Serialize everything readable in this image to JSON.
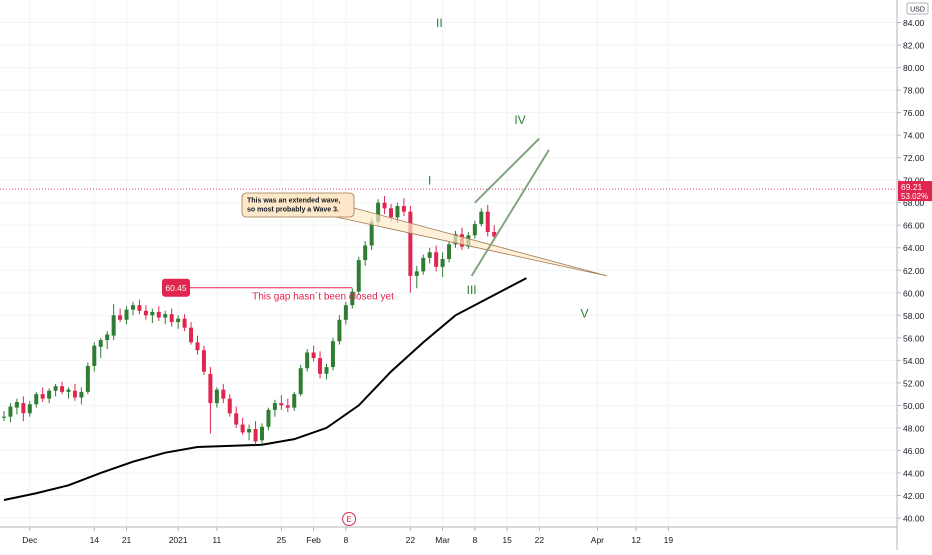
{
  "chart_data": {
    "type": "candlestick",
    "currency": "USD",
    "y_ticks": [
      "40.00",
      "42.00",
      "44.00",
      "46.00",
      "48.00",
      "50.00",
      "52.00",
      "54.00",
      "56.00",
      "58.00",
      "60.00",
      "62.00",
      "64.00",
      "66.00",
      "68.00",
      "70.00",
      "72.00",
      "74.00",
      "76.00",
      "78.00",
      "80.00",
      "82.00",
      "84.00"
    ],
    "ylim": [
      39.2,
      86.0
    ],
    "x_labels": [
      {
        "label": "Dec",
        "t": 4
      },
      {
        "label": "14",
        "t": 14
      },
      {
        "label": "21",
        "t": 19
      },
      {
        "label": "2021",
        "t": 27
      },
      {
        "label": "11",
        "t": 33
      },
      {
        "label": "25",
        "t": 43
      },
      {
        "label": "Feb",
        "t": 48
      },
      {
        "label": "8",
        "t": 53
      },
      {
        "label": "22",
        "t": 63
      },
      {
        "label": "Mar",
        "t": 68
      },
      {
        "label": "8",
        "t": 73
      },
      {
        "label": "15",
        "t": 78
      },
      {
        "label": "22",
        "t": 83
      },
      {
        "label": "Apr",
        "t": 92
      },
      {
        "label": "12",
        "t": 98
      },
      {
        "label": "19",
        "t": 103
      }
    ],
    "last_price": 69.21,
    "last_change": "53.02%",
    "gap_price": 60.45,
    "gap_label": "60.45",
    "gap_text": "This gap hasn´t been closed yet",
    "callout_text": [
      "This was an extended wave,",
      "so most probably a Wave 3."
    ],
    "earnings_marker": "E",
    "wave_labels": [
      {
        "label": "I",
        "t": 66,
        "y": 69.6
      },
      {
        "label": "II",
        "t": 67.5,
        "y": 83.6
      },
      {
        "label": "III",
        "t": 72.5,
        "y": 59.9
      },
      {
        "label": "IV",
        "t": 80,
        "y": 75.0
      },
      {
        "label": "V",
        "t": 90,
        "y": 57.8
      }
    ],
    "wedge_lines": [
      {
        "points": [
          [
            72.5,
            61.5
          ],
          [
            84.5,
            72.7
          ]
        ]
      },
      {
        "points": [
          [
            73,
            68
          ],
          [
            83,
            73.7
          ]
        ]
      }
    ],
    "moving_average": {
      "points": [
        [
          0,
          41.6
        ],
        [
          5,
          42.2
        ],
        [
          10,
          42.9
        ],
        [
          15,
          44.0
        ],
        [
          20,
          45.0
        ],
        [
          25,
          45.8
        ],
        [
          30,
          46.3
        ],
        [
          35,
          46.4
        ],
        [
          40,
          46.5
        ],
        [
          45,
          47.0
        ],
        [
          50,
          48.0
        ],
        [
          55,
          50.0
        ],
        [
          60,
          53.0
        ],
        [
          65,
          55.6
        ],
        [
          70,
          58.0
        ],
        [
          75,
          59.5
        ],
        [
          81,
          61.3
        ]
      ]
    },
    "candles": [
      {
        "t": 0,
        "o": 48.9,
        "h": 49.5,
        "l": 48.6,
        "c": 49.0
      },
      {
        "t": 1,
        "o": 49.0,
        "h": 50.2,
        "l": 48.5,
        "c": 49.9
      },
      {
        "t": 2,
        "o": 49.8,
        "h": 50.6,
        "l": 49.2,
        "c": 50.3
      },
      {
        "t": 3,
        "o": 50.2,
        "h": 50.8,
        "l": 48.6,
        "c": 49.3
      },
      {
        "t": 4,
        "o": 49.3,
        "h": 50.4,
        "l": 49.0,
        "c": 50.1
      },
      {
        "t": 5,
        "o": 50.1,
        "h": 51.2,
        "l": 49.8,
        "c": 51.0
      },
      {
        "t": 6,
        "o": 51.0,
        "h": 51.6,
        "l": 50.3,
        "c": 50.6
      },
      {
        "t": 7,
        "o": 50.6,
        "h": 51.5,
        "l": 50.2,
        "c": 51.3
      },
      {
        "t": 8,
        "o": 51.3,
        "h": 51.9,
        "l": 50.8,
        "c": 51.7
      },
      {
        "t": 9,
        "o": 51.7,
        "h": 52.1,
        "l": 51.0,
        "c": 51.2
      },
      {
        "t": 10,
        "o": 51.2,
        "h": 51.6,
        "l": 50.6,
        "c": 51.4
      },
      {
        "t": 11,
        "o": 51.3,
        "h": 51.9,
        "l": 50.4,
        "c": 50.7
      },
      {
        "t": 12,
        "o": 50.7,
        "h": 51.6,
        "l": 50.1,
        "c": 51.2
      },
      {
        "t": 13,
        "o": 51.2,
        "h": 53.8,
        "l": 51.0,
        "c": 53.5
      },
      {
        "t": 14,
        "o": 53.5,
        "h": 55.6,
        "l": 53.0,
        "c": 55.3
      },
      {
        "t": 15,
        "o": 55.2,
        "h": 56.0,
        "l": 54.2,
        "c": 55.8
      },
      {
        "t": 16,
        "o": 55.8,
        "h": 56.6,
        "l": 55.0,
        "c": 56.3
      },
      {
        "t": 17,
        "o": 56.2,
        "h": 59.0,
        "l": 55.8,
        "c": 58.0
      },
      {
        "t": 18,
        "o": 58.0,
        "h": 58.6,
        "l": 57.4,
        "c": 57.6
      },
      {
        "t": 19,
        "o": 57.6,
        "h": 58.8,
        "l": 57.2,
        "c": 58.5
      },
      {
        "t": 20,
        "o": 58.5,
        "h": 59.2,
        "l": 58.0,
        "c": 58.9
      },
      {
        "t": 21,
        "o": 58.9,
        "h": 59.4,
        "l": 58.1,
        "c": 58.4
      },
      {
        "t": 22,
        "o": 58.4,
        "h": 58.9,
        "l": 57.6,
        "c": 58.0
      },
      {
        "t": 23,
        "o": 58.0,
        "h": 58.6,
        "l": 57.3,
        "c": 58.3
      },
      {
        "t": 24,
        "o": 58.3,
        "h": 58.8,
        "l": 57.5,
        "c": 57.8
      },
      {
        "t": 25,
        "o": 57.8,
        "h": 58.4,
        "l": 57.2,
        "c": 58.1
      },
      {
        "t": 26,
        "o": 58.1,
        "h": 58.6,
        "l": 57.0,
        "c": 57.4
      },
      {
        "t": 27,
        "o": 57.4,
        "h": 58.0,
        "l": 56.8,
        "c": 57.7
      },
      {
        "t": 28,
        "o": 57.7,
        "h": 58.1,
        "l": 56.6,
        "c": 56.9
      },
      {
        "t": 29,
        "o": 56.9,
        "h": 57.4,
        "l": 55.4,
        "c": 55.6
      },
      {
        "t": 30,
        "o": 55.6,
        "h": 56.2,
        "l": 54.5,
        "c": 54.9
      },
      {
        "t": 31,
        "o": 54.9,
        "h": 55.3,
        "l": 52.7,
        "c": 53.0
      },
      {
        "t": 32,
        "o": 52.8,
        "h": 53.4,
        "l": 47.5,
        "c": 50.2
      },
      {
        "t": 33,
        "o": 50.2,
        "h": 51.6,
        "l": 49.8,
        "c": 51.4
      },
      {
        "t": 34,
        "o": 51.4,
        "h": 51.9,
        "l": 50.2,
        "c": 50.6
      },
      {
        "t": 35,
        "o": 50.6,
        "h": 51.0,
        "l": 49.0,
        "c": 49.3
      },
      {
        "t": 36,
        "o": 49.3,
        "h": 49.9,
        "l": 48.0,
        "c": 48.3
      },
      {
        "t": 37,
        "o": 48.3,
        "h": 48.9,
        "l": 47.4,
        "c": 47.6
      },
      {
        "t": 38,
        "o": 47.6,
        "h": 48.3,
        "l": 46.9,
        "c": 47.9
      },
      {
        "t": 39,
        "o": 47.9,
        "h": 48.6,
        "l": 46.5,
        "c": 46.8
      },
      {
        "t": 40,
        "o": 46.9,
        "h": 48.4,
        "l": 46.6,
        "c": 48.1
      },
      {
        "t": 41,
        "o": 48.1,
        "h": 49.8,
        "l": 47.8,
        "c": 49.6
      },
      {
        "t": 42,
        "o": 49.6,
        "h": 50.5,
        "l": 49.0,
        "c": 50.2
      },
      {
        "t": 43,
        "o": 50.2,
        "h": 50.9,
        "l": 49.6,
        "c": 50.0
      },
      {
        "t": 44,
        "o": 50.0,
        "h": 50.6,
        "l": 49.4,
        "c": 49.8
      },
      {
        "t": 45,
        "o": 49.8,
        "h": 51.2,
        "l": 49.5,
        "c": 51.0
      },
      {
        "t": 46,
        "o": 51.0,
        "h": 53.6,
        "l": 50.8,
        "c": 53.3
      },
      {
        "t": 47,
        "o": 53.3,
        "h": 55.0,
        "l": 53.0,
        "c": 54.7
      },
      {
        "t": 48,
        "o": 54.7,
        "h": 55.3,
        "l": 53.9,
        "c": 54.2
      },
      {
        "t": 49,
        "o": 54.2,
        "h": 54.8,
        "l": 52.4,
        "c": 52.8
      },
      {
        "t": 50,
        "o": 52.8,
        "h": 53.7,
        "l": 52.3,
        "c": 53.4
      },
      {
        "t": 51,
        "o": 53.4,
        "h": 56.0,
        "l": 53.1,
        "c": 55.7
      },
      {
        "t": 52,
        "o": 55.7,
        "h": 58.0,
        "l": 55.4,
        "c": 57.6
      },
      {
        "t": 53,
        "o": 57.6,
        "h": 59.2,
        "l": 57.2,
        "c": 58.9
      },
      {
        "t": 54,
        "o": 58.9,
        "h": 60.4,
        "l": 58.6,
        "c": 60.1
      },
      {
        "t": 55,
        "o": 60.1,
        "h": 63.2,
        "l": 59.8,
        "c": 62.9
      },
      {
        "t": 56,
        "o": 62.9,
        "h": 64.6,
        "l": 62.4,
        "c": 64.2
      },
      {
        "t": 57,
        "o": 64.2,
        "h": 66.6,
        "l": 63.8,
        "c": 66.3
      },
      {
        "t": 58,
        "o": 66.3,
        "h": 68.3,
        "l": 65.9,
        "c": 68.0
      },
      {
        "t": 59,
        "o": 68.0,
        "h": 68.6,
        "l": 67.0,
        "c": 67.5
      },
      {
        "t": 60,
        "o": 67.5,
        "h": 67.9,
        "l": 66.3,
        "c": 66.7
      },
      {
        "t": 61,
        "o": 66.7,
        "h": 68.0,
        "l": 66.2,
        "c": 67.7
      },
      {
        "t": 62,
        "o": 67.7,
        "h": 68.4,
        "l": 66.8,
        "c": 67.2
      },
      {
        "t": 63,
        "o": 67.2,
        "h": 67.7,
        "l": 60.0,
        "c": 61.5
      },
      {
        "t": 64,
        "o": 61.5,
        "h": 62.4,
        "l": 60.4,
        "c": 61.9
      },
      {
        "t": 65,
        "o": 61.9,
        "h": 63.4,
        "l": 61.6,
        "c": 63.1
      },
      {
        "t": 66,
        "o": 63.1,
        "h": 64.0,
        "l": 62.6,
        "c": 63.6
      },
      {
        "t": 67,
        "o": 63.6,
        "h": 64.2,
        "l": 61.9,
        "c": 62.3
      },
      {
        "t": 68,
        "o": 62.3,
        "h": 63.6,
        "l": 61.4,
        "c": 63.0
      },
      {
        "t": 69,
        "o": 63.0,
        "h": 64.6,
        "l": 62.7,
        "c": 64.3
      },
      {
        "t": 70,
        "o": 64.3,
        "h": 65.5,
        "l": 64.0,
        "c": 65.2
      },
      {
        "t": 71,
        "o": 65.2,
        "h": 65.8,
        "l": 63.8,
        "c": 64.1
      },
      {
        "t": 72,
        "o": 64.1,
        "h": 65.4,
        "l": 63.9,
        "c": 65.1
      },
      {
        "t": 73,
        "o": 65.1,
        "h": 66.4,
        "l": 64.8,
        "c": 66.1
      },
      {
        "t": 74,
        "o": 66.1,
        "h": 67.5,
        "l": 65.9,
        "c": 67.2
      },
      {
        "t": 75,
        "o": 67.2,
        "h": 67.8,
        "l": 65.0,
        "c": 65.4
      },
      {
        "t": 76,
        "o": 65.4,
        "h": 66.0,
        "l": 64.6,
        "c": 65.0
      }
    ]
  }
}
